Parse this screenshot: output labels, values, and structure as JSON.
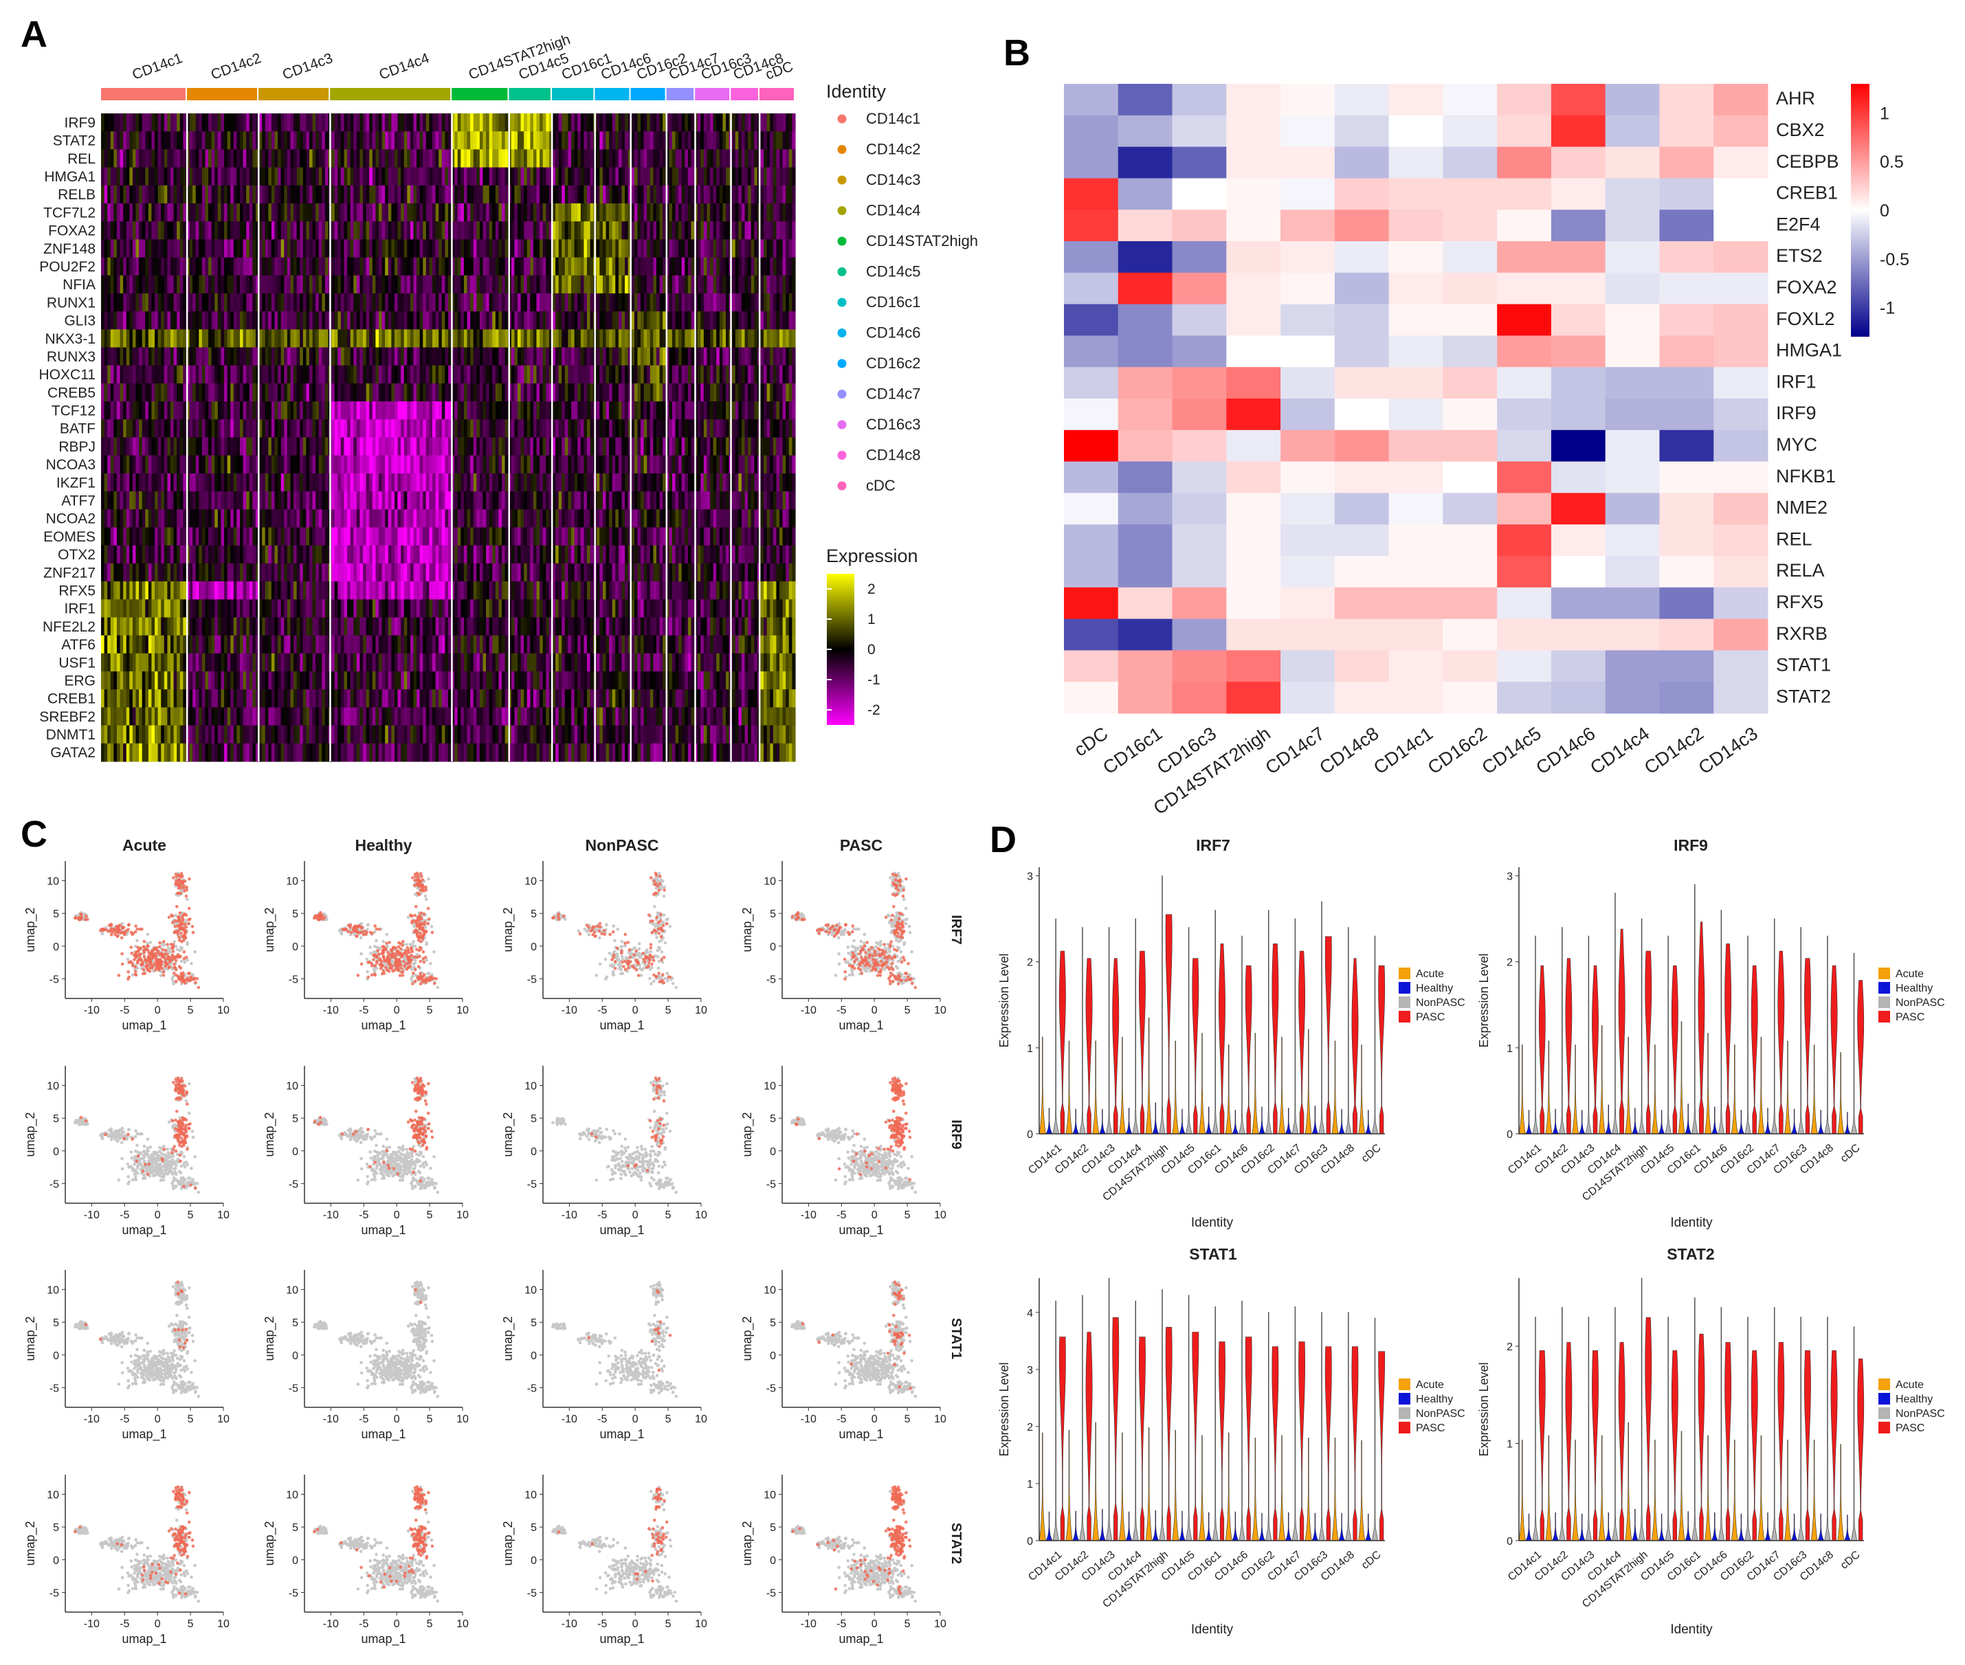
{
  "panels": {
    "A": "A",
    "B": "B",
    "C": "C",
    "D": "D"
  },
  "colors": {
    "heatA_low": "#ff00ff",
    "heatA_mid": "#000000",
    "heatA_high": "#ffff00",
    "heatB_low": "#00008b",
    "heatB_mid": "#ffffff",
    "heatB_high": "#ff0000",
    "umap_base": "#c8c8c8",
    "umap_hi": "#f06a55",
    "violin": {
      "Acute": "#f5a10a",
      "Healthy": "#0a14d8",
      "NonPASC": "#b4b4b4",
      "PASC": "#ee1c1c"
    }
  },
  "chart_data": [
    {
      "type": "heatmap",
      "panel": "A",
      "clusters": [
        "CD14c1",
        "CD14c2",
        "CD14c3",
        "CD14c4",
        "CD14STAT2high",
        "CD14c5",
        "CD16c1",
        "CD14c6",
        "CD16c2",
        "CD14c7",
        "CD16c3",
        "CD14c8",
        "cDC"
      ],
      "cluster_colors": [
        "#f8766d",
        "#e58700",
        "#c99800",
        "#a3a500",
        "#00ba38",
        "#00c08b",
        "#00bfc4",
        "#00b4f0",
        "#00a9ff",
        "#9590ff",
        "#e76bf3",
        "#fa62db",
        "#ff62bc"
      ],
      "cluster_cell_share": [
        12,
        10,
        10,
        17,
        8,
        6,
        6,
        5,
        5,
        4,
        5,
        4,
        5
      ],
      "genes": [
        "IRF9",
        "STAT2",
        "REL",
        "HMGA1",
        "RELB",
        "TCF7L2",
        "FOXA2",
        "ZNF148",
        "POU2F2",
        "NFIA",
        "RUNX1",
        "GLI3",
        "NKX3-1",
        "RUNX3",
        "HOXC11",
        "CREB5",
        "TCF12",
        "BATF",
        "RBPJ",
        "NCOA3",
        "IKZF1",
        "ATF7",
        "NCOA2",
        "EOMES",
        "OTX2",
        "ZNF217",
        "RFX5",
        "IRF1",
        "NFE2L2",
        "ATF6",
        "USF1",
        "ERG",
        "CREB1",
        "SREBF2",
        "DNMT1",
        "GATA2"
      ],
      "legend_identity_title": "Identity",
      "legend_expression_title": "Expression",
      "expression_ticks": [
        2,
        1,
        0,
        -1,
        -2
      ],
      "expression_range": [
        -2.5,
        2.5
      ]
    },
    {
      "type": "heatmap",
      "panel": "B",
      "rows": [
        "AHR",
        "CBX2",
        "CEBPB",
        "CREB1",
        "E2F4",
        "ETS2",
        "FOXA2",
        "FOXL2",
        "HMGA1",
        "IRF1",
        "IRF9",
        "MYC",
        "NFKB1",
        "NME2",
        "REL",
        "RELA",
        "RFX5",
        "RXRB",
        "STAT1",
        "STAT2"
      ],
      "columns": [
        "cDC",
        "CD16c1",
        "CD16c3",
        "CD14STAT2high",
        "CD14c7",
        "CD14c8",
        "CD14c1",
        "CD16c2",
        "CD14c5",
        "CD14c6",
        "CD14c4",
        "CD14c2",
        "CD14c3"
      ],
      "values": [
        [
          -0.4,
          -0.8,
          -0.3,
          0.1,
          0.05,
          -0.1,
          0.1,
          -0.05,
          0.25,
          0.9,
          -0.35,
          0.2,
          0.45
        ],
        [
          -0.5,
          -0.4,
          -0.2,
          0.1,
          -0.05,
          -0.2,
          0.0,
          -0.1,
          0.2,
          1.05,
          -0.3,
          0.2,
          0.35
        ],
        [
          -0.5,
          -1.1,
          -0.8,
          0.1,
          0.1,
          -0.35,
          -0.1,
          -0.25,
          0.6,
          0.25,
          0.15,
          0.4,
          0.1
        ],
        [
          1.05,
          -0.45,
          0.0,
          0.05,
          -0.05,
          0.25,
          0.2,
          0.2,
          0.2,
          0.1,
          -0.2,
          -0.25,
          0.0
        ],
        [
          1.0,
          0.2,
          0.3,
          0.05,
          0.35,
          0.55,
          0.25,
          0.2,
          0.05,
          -0.6,
          -0.2,
          -0.7,
          0.0
        ],
        [
          -0.55,
          -1.1,
          -0.6,
          0.15,
          0.1,
          -0.1,
          0.05,
          -0.1,
          0.45,
          0.45,
          -0.1,
          0.25,
          0.3
        ],
        [
          -0.3,
          1.1,
          0.55,
          0.1,
          0.05,
          -0.35,
          0.1,
          0.15,
          0.1,
          0.1,
          -0.15,
          -0.1,
          -0.1
        ],
        [
          -0.9,
          -0.6,
          -0.25,
          0.1,
          -0.2,
          -0.25,
          0.05,
          0.05,
          1.25,
          0.2,
          0.05,
          0.25,
          0.3
        ],
        [
          -0.5,
          -0.6,
          -0.5,
          0.0,
          0.0,
          -0.25,
          -0.1,
          -0.2,
          0.5,
          0.45,
          0.05,
          0.35,
          0.3
        ],
        [
          -0.25,
          0.45,
          0.55,
          0.7,
          -0.15,
          0.15,
          0.15,
          0.25,
          -0.1,
          -0.3,
          -0.35,
          -0.35,
          -0.1
        ],
        [
          -0.05,
          0.4,
          0.6,
          1.15,
          -0.3,
          0.0,
          -0.1,
          0.05,
          -0.25,
          -0.3,
          -0.4,
          -0.4,
          -0.25
        ],
        [
          1.3,
          0.35,
          0.25,
          -0.1,
          0.45,
          0.55,
          0.3,
          0.3,
          -0.2,
          -1.3,
          -0.1,
          -1.05,
          -0.3
        ],
        [
          -0.35,
          -0.65,
          -0.2,
          0.2,
          0.05,
          0.1,
          0.1,
          0.0,
          0.8,
          -0.15,
          -0.1,
          0.05,
          0.05
        ],
        [
          -0.05,
          -0.45,
          -0.25,
          0.05,
          -0.1,
          -0.3,
          -0.05,
          -0.25,
          0.35,
          1.15,
          -0.35,
          0.15,
          0.3
        ],
        [
          -0.35,
          -0.6,
          -0.2,
          0.05,
          -0.15,
          -0.15,
          0.05,
          0.05,
          0.95,
          0.1,
          -0.1,
          0.15,
          0.2
        ],
        [
          -0.35,
          -0.6,
          -0.2,
          0.05,
          -0.1,
          0.05,
          0.05,
          0.05,
          0.85,
          0.0,
          -0.15,
          0.05,
          0.15
        ],
        [
          1.2,
          0.2,
          0.5,
          0.05,
          0.1,
          0.35,
          0.35,
          0.35,
          -0.1,
          -0.45,
          -0.45,
          -0.7,
          -0.25
        ],
        [
          -0.9,
          -1.05,
          -0.5,
          0.15,
          0.15,
          0.15,
          0.15,
          0.05,
          0.15,
          0.15,
          0.15,
          0.2,
          0.45
        ],
        [
          0.25,
          0.45,
          0.6,
          0.7,
          -0.2,
          0.2,
          0.1,
          0.15,
          -0.1,
          -0.25,
          -0.5,
          -0.5,
          -0.2
        ],
        [
          0.05,
          0.45,
          0.65,
          1.0,
          -0.15,
          0.1,
          0.1,
          0.05,
          -0.25,
          -0.3,
          -0.5,
          -0.55,
          -0.2
        ]
      ],
      "color_ticks": [
        1,
        0.5,
        0,
        -0.5,
        -1
      ],
      "color_range": [
        -1.3,
        1.3
      ]
    },
    {
      "type": "scatter",
      "panel": "C",
      "conditions": [
        "Acute",
        "Healthy",
        "NonPASC",
        "PASC"
      ],
      "genes": [
        "IRF7",
        "IRF9",
        "STAT1",
        "STAT2"
      ],
      "xlabel": "umap_1",
      "ylabel": "umap_2",
      "xticks": [
        -10,
        -5,
        0,
        5,
        10
      ],
      "yticks": [
        10,
        5,
        0,
        -5
      ],
      "xlim": [
        -14,
        10
      ],
      "ylim": [
        -8,
        13
      ],
      "highlight_fraction": [
        [
          0.55,
          0.5,
          0.22,
          0.3
        ],
        [
          0.3,
          0.3,
          0.15,
          0.42
        ],
        [
          0.02,
          0.02,
          0.03,
          0.12
        ],
        [
          0.3,
          0.3,
          0.18,
          0.4
        ]
      ]
    },
    {
      "type": "violin",
      "panel": "D",
      "xlabel": "Identity",
      "ylabel": "Expression Level",
      "legend": [
        "Acute",
        "Healthy",
        "NonPASC",
        "PASC"
      ],
      "categories": [
        "CD14c1",
        "CD14c2",
        "CD14c3",
        "CD14c4",
        "CD14STAT2high",
        "CD14c5",
        "CD16c1",
        "CD14c6",
        "CD16c2",
        "CD14c7",
        "CD16c3",
        "CD14c8",
        "cDC"
      ],
      "plots": [
        {
          "title": "IRF7",
          "yticks": [
            0,
            1,
            2,
            3
          ],
          "ylim": [
            0,
            3.1
          ],
          "pasc_peak": [
            1.6,
            1.5,
            1.4,
            1.7,
            2.3,
            1.7,
            1.5,
            1.6,
            1.7,
            1.6,
            2.1,
            1.3,
            1.7
          ],
          "max": [
            2.5,
            2.4,
            2.4,
            2.5,
            3.0,
            2.4,
            2.6,
            2.3,
            2.6,
            2.5,
            2.7,
            2.4,
            2.3
          ]
        },
        {
          "title": "IRF9",
          "yticks": [
            0,
            1,
            2,
            3
          ],
          "ylim": [
            0,
            3.1
          ],
          "pasc_peak": [
            1.3,
            1.4,
            1.3,
            1.5,
            1.7,
            1.4,
            1.5,
            1.6,
            1.4,
            1.5,
            1.6,
            1.4,
            1.3
          ],
          "max": [
            2.3,
            2.4,
            2.3,
            2.8,
            2.5,
            2.3,
            2.9,
            2.6,
            2.3,
            2.5,
            2.4,
            2.3,
            2.1
          ]
        },
        {
          "title": "STAT1",
          "yticks": [
            0,
            1,
            2,
            3,
            4
          ],
          "ylim": [
            0,
            4.6
          ],
          "pasc_peak": [
            3.2,
            2.7,
            3.4,
            3.2,
            3.3,
            3.5,
            3.1,
            3.2,
            3.0,
            3.1,
            3.0,
            3.0,
            3.2
          ],
          "max": [
            4.2,
            4.3,
            4.6,
            4.2,
            4.4,
            4.3,
            4.1,
            4.2,
            4.0,
            4.1,
            4.0,
            4.0,
            3.9
          ]
        },
        {
          "title": "STAT2",
          "yticks": [
            0,
            1,
            2
          ],
          "ylim": [
            0,
            2.7
          ],
          "pasc_peak": [
            1.6,
            1.5,
            1.6,
            1.5,
            1.8,
            1.5,
            1.6,
            1.6,
            1.5,
            1.6,
            1.6,
            1.5,
            1.4
          ],
          "max": [
            2.3,
            2.4,
            2.3,
            2.4,
            2.7,
            2.3,
            2.5,
            2.4,
            2.3,
            2.4,
            2.3,
            2.3,
            2.2
          ]
        }
      ]
    }
  ]
}
